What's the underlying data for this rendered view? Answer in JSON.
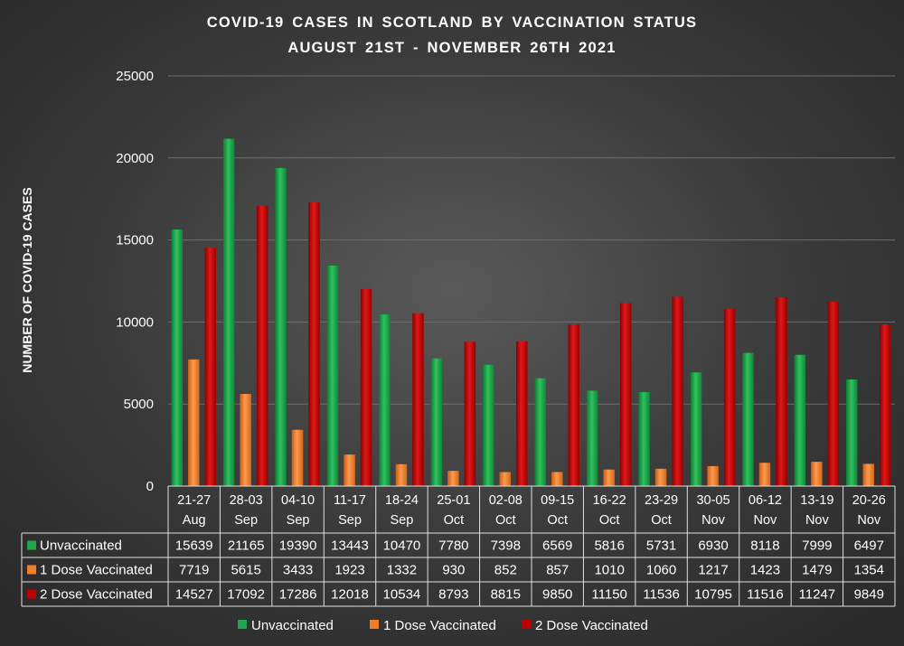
{
  "chart_data": {
    "type": "bar",
    "title": "COVID-19 CASES IN SCOTLAND  BY VACCINATION  STATUS",
    "subtitle": "AUGUST 21ST - NOVEMBER 26TH 2021",
    "ylabel": "NUMBER OF COVID-19 CASES",
    "ylim": [
      0,
      25000
    ],
    "yticks": [
      "0",
      "5000",
      "10000",
      "15000",
      "20000",
      "25000"
    ],
    "categories": [
      [
        "21-27",
        "Aug"
      ],
      [
        "28-03",
        "Sep"
      ],
      [
        "04-10",
        "Sep"
      ],
      [
        "11-17",
        "Sep"
      ],
      [
        "18-24",
        "Sep"
      ],
      [
        "25-01",
        "Oct"
      ],
      [
        "02-08",
        "Oct"
      ],
      [
        "09-15",
        "Oct"
      ],
      [
        "16-22",
        "Oct"
      ],
      [
        "23-29",
        "Oct"
      ],
      [
        "30-05",
        "Nov"
      ],
      [
        "06-12",
        "Nov"
      ],
      [
        "13-19",
        "Nov"
      ],
      [
        "20-26",
        "Nov"
      ]
    ],
    "series": [
      {
        "name": "Unvaccinated",
        "color": "#1fa64a",
        "values": [
          15639,
          21165,
          19390,
          13443,
          10470,
          7780,
          7398,
          6569,
          5816,
          5731,
          6930,
          8118,
          7999,
          6497
        ]
      },
      {
        "name": "1 Dose Vaccinated",
        "color": "#f07d2a",
        "values": [
          7719,
          5615,
          3433,
          1923,
          1332,
          930,
          852,
          857,
          1010,
          1060,
          1217,
          1423,
          1479,
          1354
        ]
      },
      {
        "name": "2 Dose Vaccinated",
        "color": "#c00000",
        "values": [
          14527,
          17092,
          17286,
          12018,
          10534,
          8793,
          8815,
          9850,
          11150,
          11536,
          10795,
          11516,
          11247,
          9849
        ]
      }
    ],
    "legend_position": "bottom",
    "grid": true,
    "data_table": true
  }
}
